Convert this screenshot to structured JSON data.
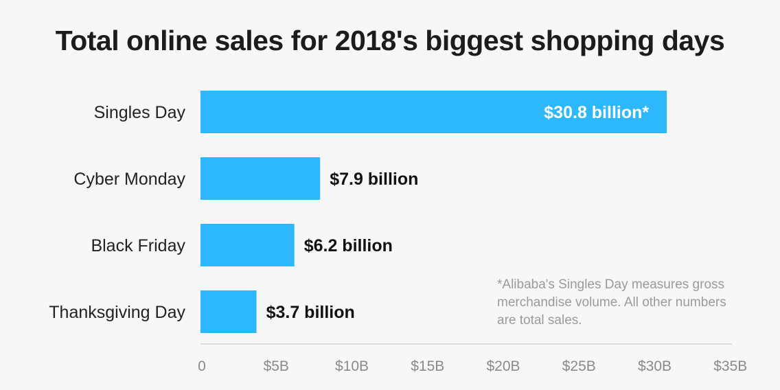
{
  "chart_data": {
    "type": "bar",
    "orientation": "horizontal",
    "title": "Total online sales for 2018's biggest shopping days",
    "categories": [
      "Singles Day",
      "Cyber Monday",
      "Black Friday",
      "Thanksgiving Day"
    ],
    "values": [
      30.8,
      7.9,
      6.2,
      3.7
    ],
    "value_labels": [
      "$30.8 billion*",
      "$7.9 billion",
      "$6.2 billion",
      "$3.7 billion"
    ],
    "x_ticks": [
      "0",
      "$5B",
      "$10B",
      "$15B",
      "$20B",
      "$25B",
      "$30B",
      "$35B"
    ],
    "xlim": [
      0,
      35
    ],
    "grid": false,
    "bar_color": "#2db8fe",
    "note": "*Alibaba's Singles Day measures gross merchandise volume. All other numbers are total sales."
  }
}
